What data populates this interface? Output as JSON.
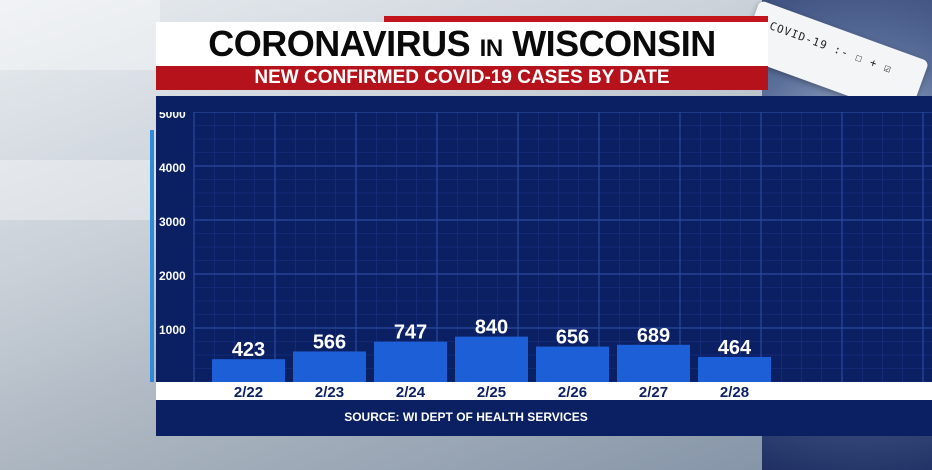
{
  "header": {
    "title_part1": "CORONAVIRUS",
    "title_part2": "IN",
    "title_part3": "WISCONSIN",
    "subtitle": "NEW CONFIRMED COVID-19 CASES BY DATE"
  },
  "background": {
    "test_label": "COVID-19 :- ☐ + ☑"
  },
  "source": "SOURCE: WI DEPT OF HEALTH SERVICES",
  "colors": {
    "panel": "#0b1f63",
    "bar": "#1c5fd6",
    "grid": "#2a4aa0",
    "title_red": "#b5121b"
  },
  "chart_data": {
    "type": "bar",
    "categories": [
      "2/22",
      "2/23",
      "2/24",
      "2/25",
      "2/26",
      "2/27",
      "2/28"
    ],
    "values": [
      423,
      566,
      747,
      840,
      656,
      689,
      464
    ],
    "value_labels": [
      "423",
      "566",
      "747",
      "840",
      "656",
      "689",
      "464"
    ],
    "yticks": [
      1000,
      2000,
      3000,
      4000,
      5000
    ],
    "ytick_labels": [
      "1000",
      "2000",
      "3000",
      "4000",
      "5000"
    ],
    "ylim": [
      0,
      5000
    ],
    "grid": true,
    "legend": "none"
  }
}
